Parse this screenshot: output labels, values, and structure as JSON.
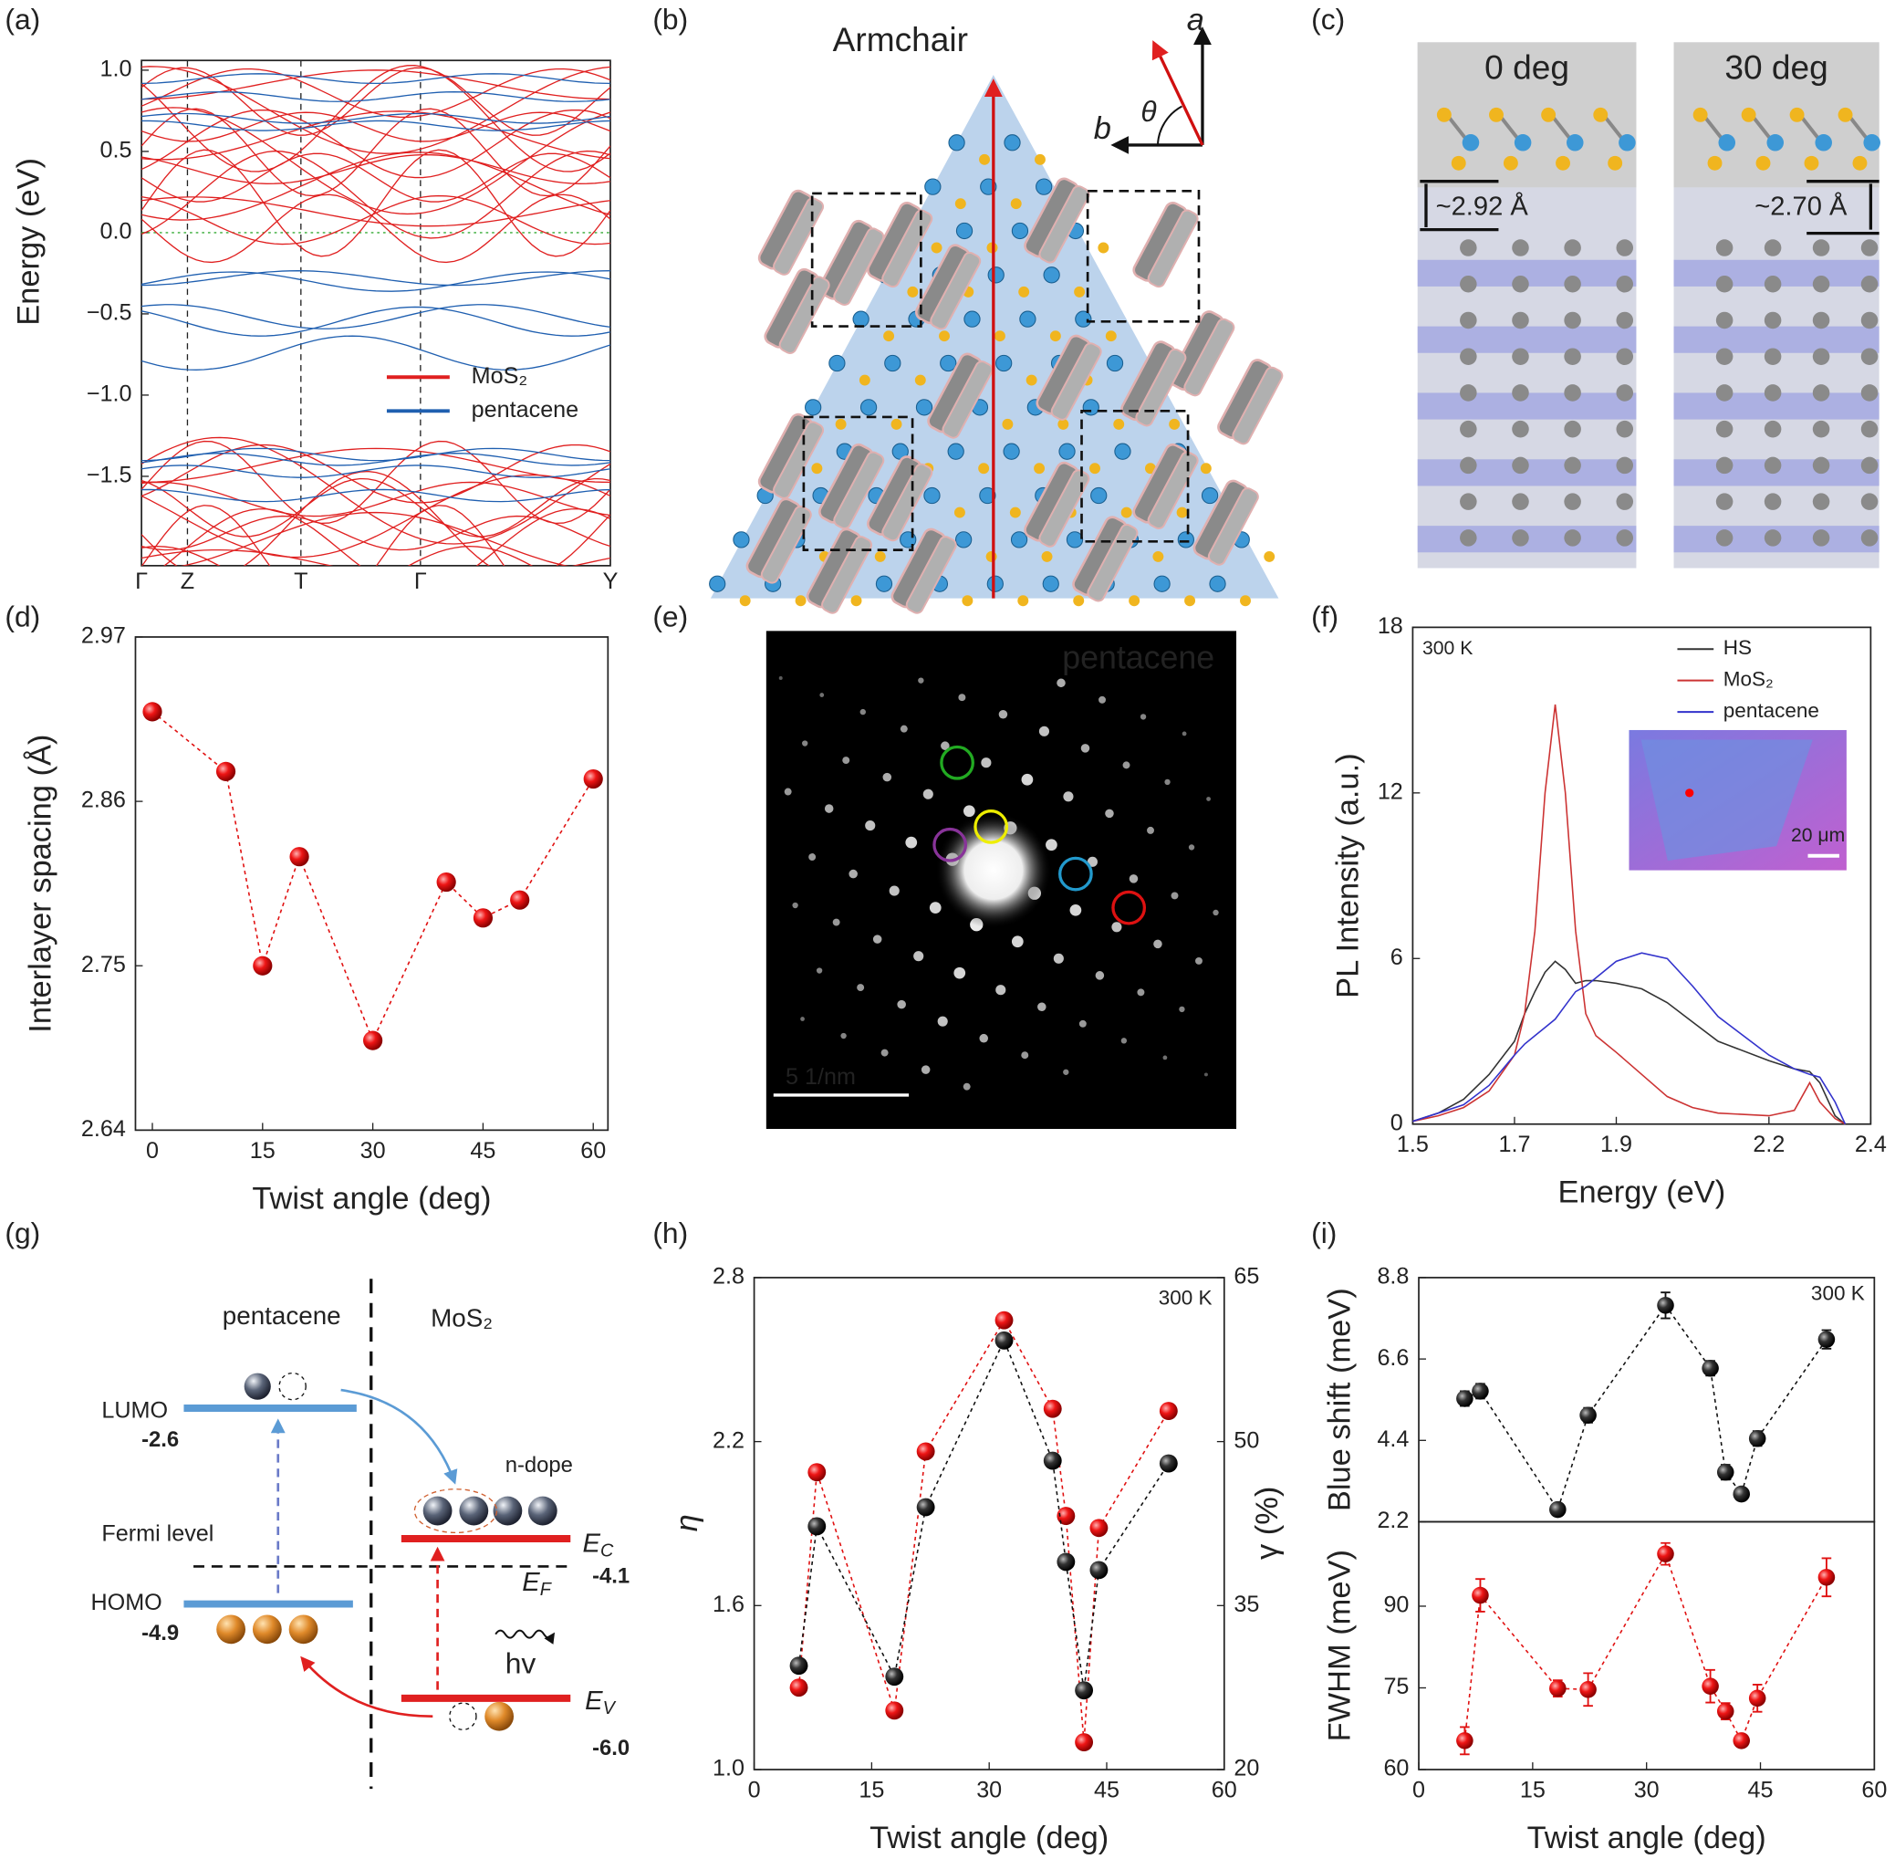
{
  "panel_labels": [
    "(a)",
    "(b)",
    "(c)",
    "(d)",
    "(e)",
    "(f)",
    "(g)",
    "(h)",
    "(i)"
  ],
  "chart_data": [
    {
      "type": "band",
      "ylabel": "Energy (eV)",
      "categories": [
        "Γ",
        "Z",
        "T",
        "Γ",
        "Y"
      ],
      "ylim": [
        -2.05,
        1.06
      ],
      "yticks": [
        {
          "value": 1,
          "label": "1.0"
        },
        0.5,
        {
          "value": 0,
          "label": "0.0"
        },
        {
          "value": -0.5,
          "label": "−0.5"
        },
        {
          "value": -1,
          "label": "−1.0"
        },
        {
          "value": -1.5,
          "label": "−1.5"
        }
      ],
      "fermi_level": 0,
      "series": [
        {
          "name": "MoS₂",
          "color": "#e02020"
        },
        {
          "name": "pentacene",
          "color": "#1f5fb0"
        }
      ]
    },
    {
      "type": "scatter",
      "xlabel": "Twist angle (deg)",
      "ylabel": "Interlayer spacing (Å)",
      "color": "#e01010",
      "x": [
        0,
        10,
        15,
        20,
        30,
        40,
        45,
        50,
        60
      ],
      "values": [
        2.92,
        2.88,
        2.75,
        2.823,
        2.7,
        2.806,
        2.782,
        2.794,
        2.875
      ],
      "xlim": [
        -2.3,
        62
      ],
      "xticks": [
        0,
        15,
        30,
        45,
        60
      ],
      "ylim": [
        2.64,
        2.97
      ],
      "yticks": [
        2.64,
        2.75,
        2.86,
        2.97
      ]
    },
    {
      "type": "line",
      "xlabel": "Energy (eV)",
      "ylabel": "PL Intensity (a.u.)",
      "annotation": "300 K",
      "inset_scale": "20 μm",
      "legend": "upper right",
      "x": [
        1.5,
        1.55,
        1.6,
        1.65,
        1.7,
        1.72,
        1.74,
        1.76,
        1.78,
        1.8,
        1.82,
        1.84,
        1.86,
        1.9,
        1.95,
        2.0,
        2.05,
        2.1,
        2.2,
        2.25,
        2.28,
        2.3,
        2.33,
        2.35
      ],
      "series": [
        {
          "name": "HS",
          "color": "#333333",
          "values": [
            0.1,
            0.4,
            0.9,
            1.8,
            3,
            4,
            4.8,
            5.5,
            5.9,
            5.6,
            5.1,
            5.2,
            5.2,
            5.1,
            4.9,
            4.4,
            3.7,
            3.0,
            2.3,
            2.0,
            1.9,
            1.5,
            0.3,
            0
          ]
        },
        {
          "name": "MoS₂",
          "color": "#cc3333",
          "values": [
            0.1,
            0.3,
            0.6,
            1.2,
            2.5,
            4,
            7,
            12,
            15.2,
            12,
            7,
            4,
            3.2,
            2.6,
            1.8,
            1.0,
            0.6,
            0.4,
            0.3,
            0.5,
            1.5,
            0.8,
            0.2,
            0
          ]
        },
        {
          "name": "pentacene",
          "color": "#3333cc",
          "values": [
            0.1,
            0.4,
            0.7,
            1.4,
            2.5,
            2.9,
            3.2,
            3.5,
            3.8,
            4.3,
            4.8,
            5.0,
            5.3,
            5.9,
            6.2,
            6.0,
            5.0,
            3.9,
            2.5,
            2.0,
            1.8,
            1.7,
            0.8,
            0
          ]
        }
      ],
      "xlim": [
        1.5,
        2.4
      ],
      "xticks": [
        1.5,
        1.7,
        1.9,
        2.2,
        2.4
      ],
      "ylim": [
        0,
        18
      ],
      "yticks": [
        0,
        6,
        12,
        18
      ]
    },
    {
      "type": "dual",
      "xlabel": "Twist angle (deg)",
      "ylabel": "η",
      "y2label": "γ (%)",
      "annotation": "300 K",
      "x": [
        5.7,
        8,
        17.9,
        21.9,
        31.9,
        38.1,
        39.8,
        42.1,
        44,
        52.9
      ],
      "series": [
        {
          "color": "#111111",
          "values": [
            1.38,
            1.89,
            1.34,
            1.96,
            2.57,
            2.13,
            1.76,
            1.29,
            1.73,
            2.12
          ]
        },
        {
          "color": "#e01010",
          "axis": "y2",
          "values": [
            27.5,
            47.2,
            25.4,
            49.1,
            61.1,
            53.0,
            43.2,
            22.5,
            42.1,
            52.8
          ]
        }
      ],
      "xlim": [
        0,
        60
      ],
      "xticks": [
        0,
        15,
        30,
        45,
        60
      ],
      "ylim": [
        1.0,
        2.8
      ],
      "yticks": [
        {
          "value": 1,
          "label": "1.0"
        },
        1.6,
        2.2,
        2.8
      ],
      "y2lim": [
        20,
        65
      ],
      "y2ticks": [
        20,
        35,
        50,
        65
      ]
    },
    {
      "type": "errorbar",
      "ylabel": "Blue shift (meV)",
      "annotation": "300 K",
      "color": "#111111",
      "x": [
        6.05,
        8.1,
        18.3,
        22.3,
        32.5,
        38.4,
        40.4,
        42.5,
        44.6,
        53.7
      ],
      "values": [
        5.53,
        5.73,
        2.53,
        5.08,
        8.05,
        6.35,
        3.54,
        2.95,
        4.45,
        7.13
      ],
      "errors": [
        0.2,
        0.2,
        0.15,
        0.2,
        0.35,
        0.2,
        0.2,
        0.15,
        0.2,
        0.25
      ],
      "xlim": [
        0,
        60
      ],
      "ylim": [
        2.2,
        8.8
      ],
      "yticks": [
        2.2,
        4.4,
        6.6,
        8.8
      ]
    },
    {
      "type": "errorbar",
      "xlabel": "Twist angle (deg)",
      "ylabel": "FWHM (meV)",
      "color": "#e01010",
      "x": [
        6.05,
        8.1,
        18.3,
        22.3,
        32.5,
        38.4,
        40.4,
        42.5,
        44.6,
        53.7
      ],
      "values": [
        65.3,
        92.0,
        74.9,
        74.7,
        99.6,
        75.3,
        70.7,
        65.3,
        73.1,
        95.3
      ],
      "errors": [
        2.5,
        3,
        1.5,
        3,
        2,
        3,
        1.5,
        1,
        2.5,
        3.5
      ],
      "xlim": [
        0,
        60
      ],
      "xticks": [
        0,
        15,
        30,
        45,
        60
      ],
      "ylim": [
        60,
        105.5
      ],
      "yticks": [
        60,
        75,
        90
      ]
    }
  ],
  "schematic": {
    "direction": "Armchair",
    "axis_a": "a",
    "axis_b": "b",
    "angle": "θ"
  },
  "charge_density": {
    "angles": [
      "0 deg",
      "30 deg"
    ],
    "spacings": [
      "~2.92 Å",
      "~2.70 Å"
    ]
  },
  "diffraction": {
    "label": "pentacene",
    "scale_bar": "5 1/nm"
  },
  "energy_diagram": {
    "left": "pentacene",
    "right": "MoS₂",
    "lumo": "LUMO",
    "lumo_energy": "-2.6",
    "homo": "HOMO",
    "homo_energy": "-4.9",
    "fermi": "Fermi level",
    "dope": "n-dope",
    "photon": "hv",
    "ec": {
      "main": "E",
      "sub": "C"
    },
    "ec_energy": "-4.1",
    "ef": {
      "main": "E",
      "sub": "F"
    },
    "ev": {
      "main": "E",
      "sub": "V"
    },
    "ev_energy": "-6.0"
  }
}
